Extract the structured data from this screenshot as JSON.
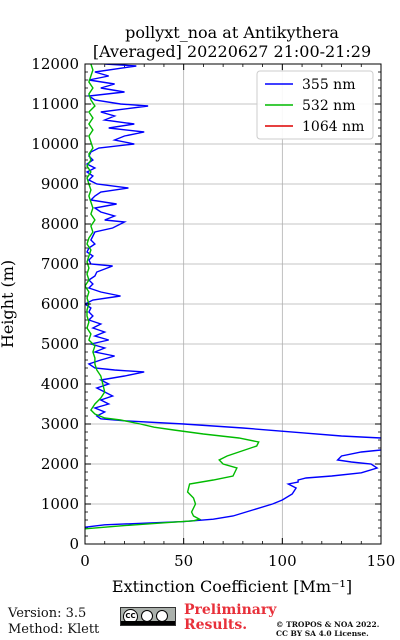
{
  "chart_data": {
    "type": "line",
    "title_line1": "pollyxt_noa at Antikythera",
    "title_line2": "[Averaged] 20220627 21:00-21:29",
    "xlabel": "Extinction Coefficient [Mm⁻¹]",
    "ylabel": "Height (m)",
    "xlim": [
      0,
      150
    ],
    "ylim": [
      0,
      12000
    ],
    "x_ticks": [
      0,
      50,
      100,
      150
    ],
    "y_ticks": [
      0,
      1000,
      2000,
      3000,
      4000,
      5000,
      6000,
      7000,
      8000,
      9000,
      10000,
      11000,
      12000
    ],
    "grid": true,
    "legend_position": "top-right",
    "series": [
      {
        "name": "355 nm",
        "color": "#0000ff",
        "points": [
          [
            0,
            420
          ],
          [
            10,
            480
          ],
          [
            30,
            520
          ],
          [
            50,
            560
          ],
          [
            65,
            620
          ],
          [
            75,
            700
          ],
          [
            85,
            850
          ],
          [
            95,
            1000
          ],
          [
            100,
            1100
          ],
          [
            105,
            1250
          ],
          [
            107,
            1400
          ],
          [
            103,
            1500
          ],
          [
            108,
            1550
          ],
          [
            108,
            1600
          ],
          [
            112,
            1650
          ],
          [
            125,
            1700
          ],
          [
            140,
            1780
          ],
          [
            148,
            1900
          ],
          [
            145,
            2000
          ],
          [
            135,
            2050
          ],
          [
            128,
            2100
          ],
          [
            130,
            2200
          ],
          [
            140,
            2300
          ],
          [
            150,
            2350
          ],
          [
            152,
            2400
          ],
          [
            152,
            2600
          ],
          [
            150,
            2650
          ],
          [
            130,
            2700
          ],
          [
            110,
            2780
          ],
          [
            80,
            2900
          ],
          [
            50,
            3000
          ],
          [
            20,
            3080
          ],
          [
            8,
            3130
          ],
          [
            6,
            3200
          ],
          [
            10,
            3300
          ],
          [
            5,
            3400
          ],
          [
            12,
            3500
          ],
          [
            8,
            3600
          ],
          [
            14,
            3700
          ],
          [
            10,
            3800
          ],
          [
            6,
            3900
          ],
          [
            12,
            4000
          ],
          [
            8,
            4100
          ],
          [
            20,
            4200
          ],
          [
            30,
            4300
          ],
          [
            15,
            4350
          ],
          [
            5,
            4400
          ],
          [
            2,
            4500
          ],
          [
            8,
            4600
          ],
          [
            15,
            4700
          ],
          [
            5,
            4800
          ],
          [
            10,
            4900
          ],
          [
            3,
            5000
          ],
          [
            12,
            5100
          ],
          [
            5,
            5200
          ],
          [
            10,
            5300
          ],
          [
            4,
            5400
          ],
          [
            8,
            5500
          ],
          [
            2,
            5600
          ],
          [
            4,
            5700
          ],
          [
            2,
            5800
          ],
          [
            3,
            5900
          ],
          [
            0,
            6000
          ],
          [
            4,
            6100
          ],
          [
            18,
            6200
          ],
          [
            8,
            6300
          ],
          [
            2,
            6400
          ],
          [
            4,
            6500
          ],
          [
            2,
            6600
          ],
          [
            5,
            6700
          ],
          [
            6,
            6800
          ],
          [
            14,
            6950
          ],
          [
            3,
            7000
          ],
          [
            2,
            7100
          ],
          [
            4,
            7200
          ],
          [
            1,
            7300
          ],
          [
            2,
            7400
          ],
          [
            5,
            7500
          ],
          [
            3,
            7600
          ],
          [
            4,
            7700
          ],
          [
            5,
            7800
          ],
          [
            14,
            7900
          ],
          [
            20,
            8050
          ],
          [
            10,
            8100
          ],
          [
            15,
            8200
          ],
          [
            8,
            8300
          ],
          [
            5,
            8400
          ],
          [
            16,
            8500
          ],
          [
            3,
            8600
          ],
          [
            5,
            8700
          ],
          [
            8,
            8800
          ],
          [
            22,
            8900
          ],
          [
            6,
            9000
          ],
          [
            2,
            9100
          ],
          [
            4,
            9200
          ],
          [
            1,
            9300
          ],
          [
            5,
            9400
          ],
          [
            1,
            9500
          ],
          [
            4,
            9600
          ],
          [
            2,
            9700
          ],
          [
            3,
            9800
          ],
          [
            7,
            9900
          ],
          [
            25,
            10000
          ],
          [
            15,
            10100
          ],
          [
            20,
            10200
          ],
          [
            30,
            10300
          ],
          [
            12,
            10400
          ],
          [
            25,
            10500
          ],
          [
            10,
            10600
          ],
          [
            15,
            10700
          ],
          [
            8,
            10800
          ],
          [
            32,
            10950
          ],
          [
            18,
            11000
          ],
          [
            5,
            11100
          ],
          [
            2,
            11200
          ],
          [
            20,
            11300
          ],
          [
            8,
            11400
          ],
          [
            15,
            11500
          ],
          [
            2,
            11600
          ],
          [
            12,
            11700
          ],
          [
            5,
            11800
          ],
          [
            26,
            11950
          ],
          [
            10,
            12000
          ]
        ]
      },
      {
        "name": "532 nm",
        "color": "#00bb00",
        "points": [
          [
            0,
            380
          ],
          [
            20,
            460
          ],
          [
            40,
            530
          ],
          [
            55,
            580
          ],
          [
            58,
            620
          ],
          [
            55,
            700
          ],
          [
            54,
            800
          ],
          [
            56,
            1000
          ],
          [
            55,
            1150
          ],
          [
            52,
            1300
          ],
          [
            53,
            1500
          ],
          [
            65,
            1600
          ],
          [
            75,
            1700
          ],
          [
            77,
            1900
          ],
          [
            70,
            2000
          ],
          [
            68,
            2100
          ],
          [
            72,
            2200
          ],
          [
            78,
            2300
          ],
          [
            87,
            2450
          ],
          [
            88,
            2550
          ],
          [
            78,
            2650
          ],
          [
            60,
            2750
          ],
          [
            45,
            2850
          ],
          [
            35,
            2920
          ],
          [
            28,
            3000
          ],
          [
            18,
            3100
          ],
          [
            10,
            3150
          ],
          [
            5,
            3250
          ],
          [
            3,
            3350
          ],
          [
            5,
            3500
          ],
          [
            8,
            3650
          ],
          [
            10,
            3800
          ],
          [
            9,
            4000
          ],
          [
            8,
            4200
          ],
          [
            6,
            4350
          ],
          [
            5,
            4500
          ],
          [
            5,
            4650
          ],
          [
            4,
            4800
          ],
          [
            5,
            4950
          ],
          [
            2,
            5100
          ],
          [
            3,
            5250
          ],
          [
            1,
            5400
          ],
          [
            2,
            5550
          ],
          [
            1,
            5700
          ],
          [
            1,
            5850
          ],
          [
            2,
            6000
          ],
          [
            1,
            6150
          ],
          [
            2,
            6300
          ],
          [
            0,
            6450
          ],
          [
            2,
            6600
          ],
          [
            1,
            6750
          ],
          [
            2,
            6900
          ],
          [
            1,
            7050
          ],
          [
            2,
            7200
          ],
          [
            3,
            7350
          ],
          [
            1,
            7500
          ],
          [
            2,
            7650
          ],
          [
            4,
            7800
          ],
          [
            3,
            7950
          ],
          [
            5,
            8100
          ],
          [
            3,
            8250
          ],
          [
            4,
            8400
          ],
          [
            3,
            8550
          ],
          [
            2,
            8700
          ],
          [
            3,
            8850
          ],
          [
            2,
            9000
          ],
          [
            1,
            9150
          ],
          [
            3,
            9300
          ],
          [
            1,
            9450
          ],
          [
            3,
            9600
          ],
          [
            2,
            9750
          ],
          [
            4,
            9900
          ],
          [
            3,
            10050
          ],
          [
            2,
            10200
          ],
          [
            4,
            10350
          ],
          [
            2,
            10500
          ],
          [
            4,
            10650
          ],
          [
            2,
            10800
          ],
          [
            5,
            10950
          ],
          [
            3,
            11100
          ],
          [
            2,
            11250
          ],
          [
            4,
            11400
          ],
          [
            2,
            11550
          ],
          [
            3,
            11700
          ],
          [
            4,
            11850
          ],
          [
            3,
            12000
          ]
        ]
      },
      {
        "name": "1064 nm",
        "color": "#dd0000",
        "points": []
      }
    ]
  },
  "footer": {
    "version": "Version: 3.5",
    "method": "Method: Klett",
    "license_badge": "CC",
    "preliminary_line1": "Preliminary",
    "preliminary_line2": "Results.",
    "copyright_line1": "© TROPOS & NOA 2022.",
    "copyright_line2": "CC BY SA 4.0 License."
  }
}
